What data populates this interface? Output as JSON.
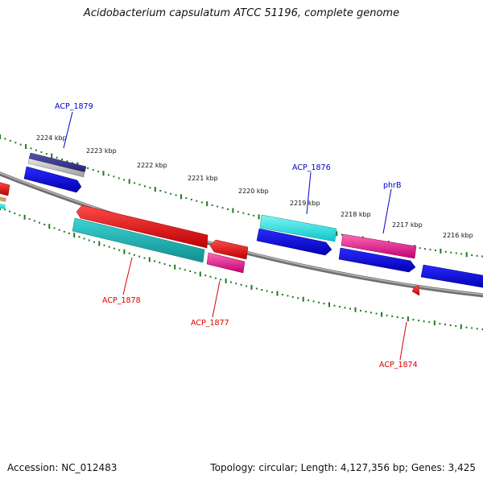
{
  "title": "Acidobacterium capsulatum ATCC 51196, complete genome",
  "footer": {
    "accession": "Accession: NC_012483",
    "summary": "Topology: circular; Length: 4,127,356 bp; Genes: 3,425"
  },
  "colors": {
    "backbone": "#808080",
    "tick": "#1e7a1e",
    "forward_label": "#0000cc",
    "reverse_label": "#dd0000",
    "blue": "#0a0aee",
    "cyan": "#12d3d3",
    "teal": "#18b2b2",
    "red": "#ee0000",
    "pink": "#ee1188",
    "navy": "#3b3b8a",
    "gray": "#b0b0b0"
  },
  "ruler": {
    "labels": [
      "2224 kbp",
      "2223 kbp",
      "2222 kbp",
      "2221 kbp",
      "2220 kbp",
      "2219 kbp",
      "2218 kbp",
      "2217 kbp",
      "2216 kbp"
    ]
  },
  "gene_labels": {
    "forward": [
      "ACP_1879",
      "ACP_1876",
      "phrB"
    ],
    "reverse": [
      "ACP_1878",
      "ACP_1877",
      "ACP_1874"
    ]
  }
}
